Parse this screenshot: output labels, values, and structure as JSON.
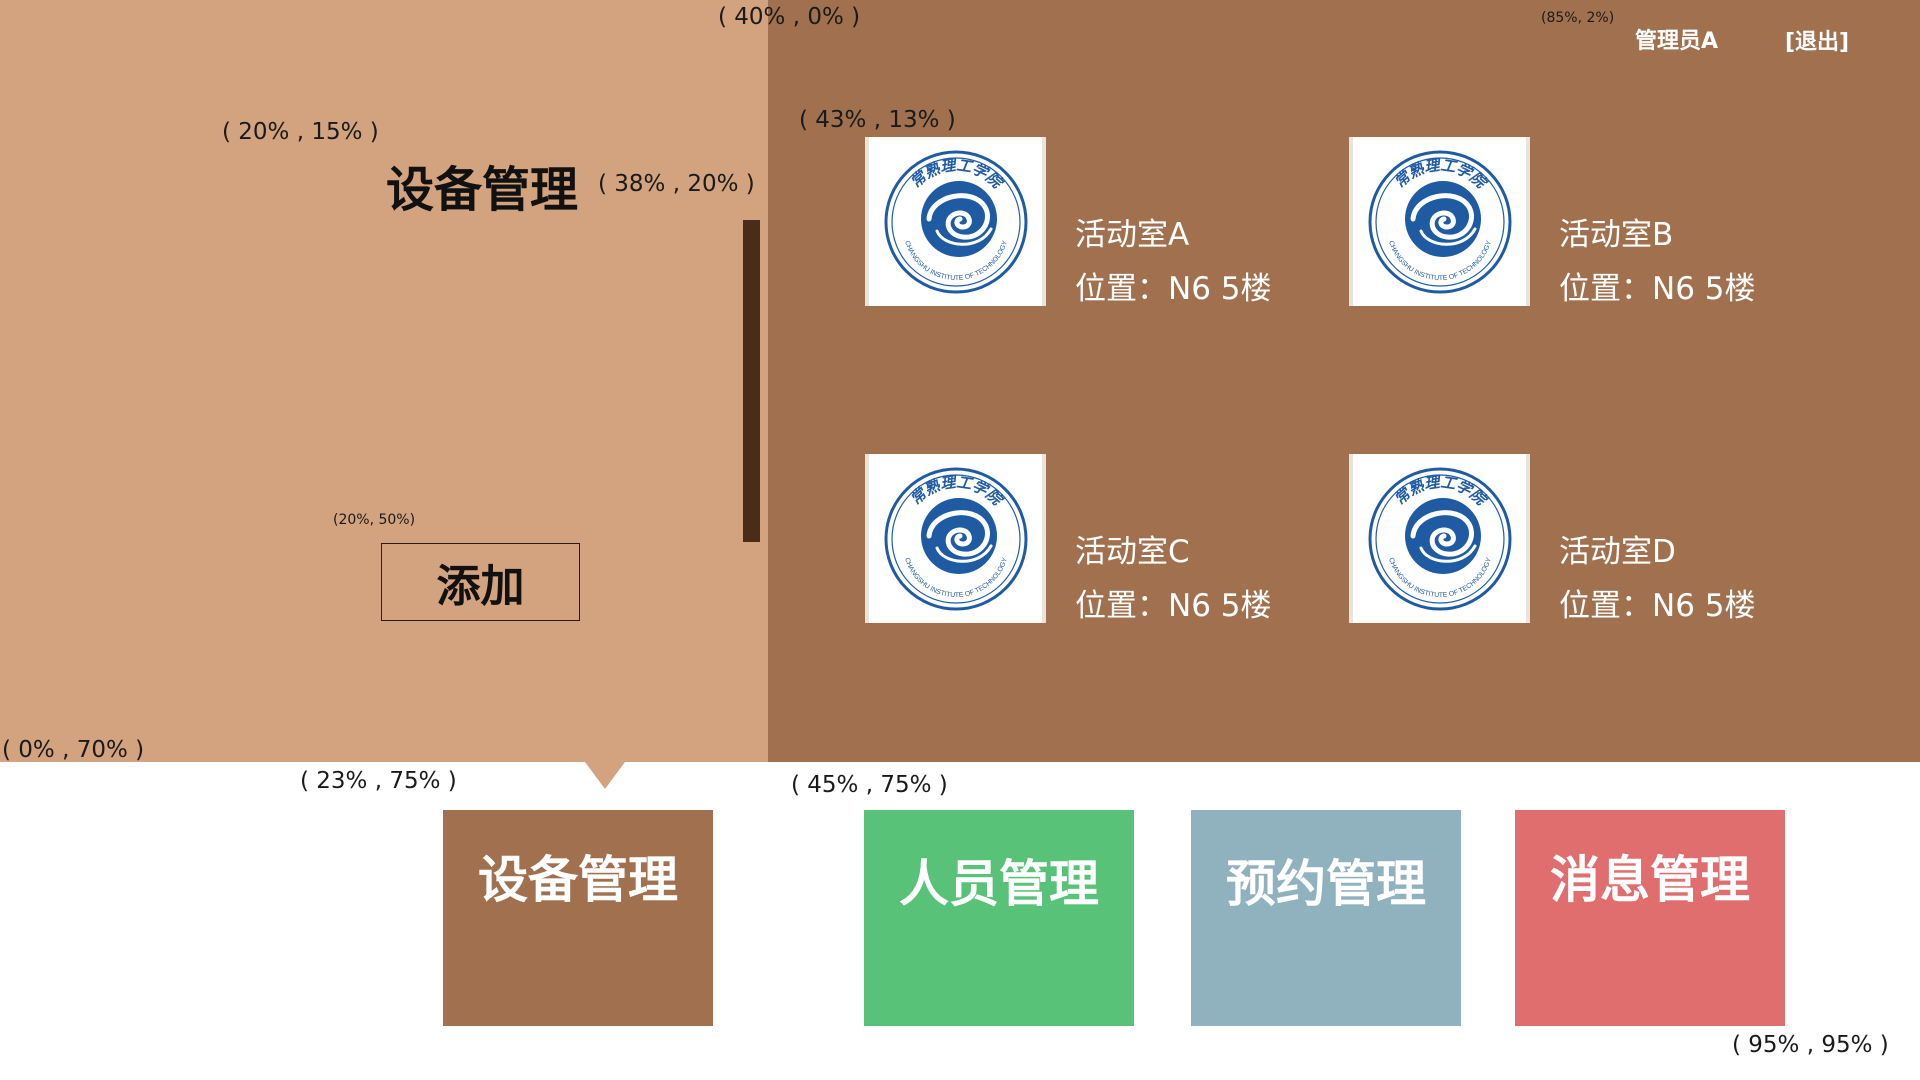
{
  "header": {
    "admin_name": "管理员A",
    "logout_label": "[退出]"
  },
  "main": {
    "title": "设备管理",
    "add_label": "添加"
  },
  "rooms": [
    {
      "name": "活动室A",
      "location": "位置：N6   5楼"
    },
    {
      "name": "活动室B",
      "location": "位置：N6   5楼"
    },
    {
      "name": "活动室C",
      "location": "位置：N6   5楼"
    },
    {
      "name": "活动室D",
      "location": "位置：N6   5楼"
    }
  ],
  "nav": {
    "tiles": [
      {
        "label": "设备管理",
        "color": "#A1714F",
        "active": true
      },
      {
        "label": "人员管理",
        "color": "#57C278"
      },
      {
        "label": "预约管理",
        "color": "#90B1BE"
      },
      {
        "label": "消息管理",
        "color": "#E06E6E"
      }
    ]
  },
  "logo": {
    "caption": "CHANGSHU INSTITUTE OF TECHNOLOGY",
    "seal_text": "常熟理工学院"
  },
  "annotations": [
    "( 40% , 0% )",
    "(85%, 2%)",
    "( 43% , 13% )",
    "( 20% , 15% )",
    "( 38% , 20% )",
    "(20%, 50%)",
    "( 0% , 70% )",
    "( 23% , 75% )",
    "( 45% , 75% )",
    "( 95% , 95% )"
  ],
  "colors": {
    "left_panel": "#D3A27E",
    "right_panel": "#A1714F",
    "divider": "#4A2C1A",
    "logo_blue": "#1E5BA3"
  }
}
